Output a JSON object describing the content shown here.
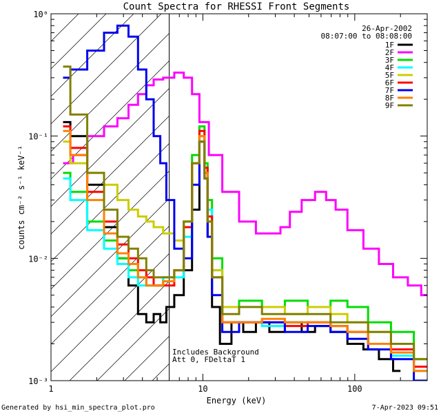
{
  "chart_data": {
    "type": "line",
    "title": "Count Spectra for RHESSI Front Segments",
    "xlabel": "Energy (keV)",
    "ylabel": "counts cm⁻² s⁻¹ keV⁻¹",
    "xscale": "log",
    "yscale": "log",
    "xlim": [
      1,
      300
    ],
    "ylim": [
      0.001,
      1
    ],
    "x_ticks": [
      {
        "value": 1,
        "label": "1"
      },
      {
        "value": 10,
        "label": "10"
      },
      {
        "value": 100,
        "label": "100"
      }
    ],
    "y_ticks": [
      {
        "value": 1,
        "label": "10⁰"
      },
      {
        "value": 0.1,
        "label": "10⁻¹"
      },
      {
        "value": 0.01,
        "label": "10⁻²"
      },
      {
        "value": 0.001,
        "label": "10⁻³"
      }
    ],
    "date": "26-Apr-2002",
    "time_range": "08:07:00 to 08:08:00",
    "legend_position": "top-right",
    "background_hatch_xmax": 6,
    "annotation": [
      "Includes Background",
      "Att 0, FDeltaT 1"
    ],
    "series": [
      {
        "name": "1F",
        "color": "#000000",
        "points": [
          [
            1.2,
            0.13
          ],
          [
            1.5,
            0.1
          ],
          [
            2,
            0.04
          ],
          [
            2.5,
            0.018
          ],
          [
            3,
            0.01
          ],
          [
            3.5,
            0.006
          ],
          [
            4,
            0.0035
          ],
          [
            4.5,
            0.003
          ],
          [
            5,
            0.0035
          ],
          [
            5.5,
            0.003
          ],
          [
            6,
            0.004
          ],
          [
            7,
            0.005
          ],
          [
            8,
            0.008
          ],
          [
            9,
            0.025
          ],
          [
            10,
            0.09
          ],
          [
            10.5,
            0.05
          ],
          [
            11,
            0.015
          ],
          [
            12,
            0.004
          ],
          [
            14,
            0.002
          ],
          [
            17,
            0.003
          ],
          [
            20,
            0.0025
          ],
          [
            25,
            0.003
          ],
          [
            30,
            0.0025
          ],
          [
            40,
            0.003
          ],
          [
            50,
            0.0025
          ],
          [
            60,
            0.0028
          ],
          [
            80,
            0.0025
          ],
          [
            100,
            0.002
          ],
          [
            130,
            0.0018
          ],
          [
            160,
            0.0015
          ],
          [
            200,
            0.0012
          ]
        ]
      },
      {
        "name": "2F",
        "color": "#ff00ff",
        "points": [
          [
            1.2,
            0.06
          ],
          [
            1.3,
            0.06
          ],
          [
            1.5,
            0.07
          ],
          [
            2,
            0.1
          ],
          [
            2.5,
            0.12
          ],
          [
            3,
            0.14
          ],
          [
            3.5,
            0.18
          ],
          [
            4,
            0.22
          ],
          [
            4.5,
            0.26
          ],
          [
            5,
            0.29
          ],
          [
            6,
            0.3
          ],
          [
            7,
            0.33
          ],
          [
            8,
            0.3
          ],
          [
            9,
            0.22
          ],
          [
            10,
            0.13
          ],
          [
            12,
            0.07
          ],
          [
            15,
            0.035
          ],
          [
            20,
            0.02
          ],
          [
            25,
            0.016
          ],
          [
            30,
            0.016
          ],
          [
            35,
            0.018
          ],
          [
            40,
            0.024
          ],
          [
            50,
            0.03
          ],
          [
            60,
            0.035
          ],
          [
            70,
            0.03
          ],
          [
            80,
            0.025
          ],
          [
            100,
            0.017
          ],
          [
            130,
            0.012
          ],
          [
            160,
            0.009
          ],
          [
            200,
            0.007
          ],
          [
            250,
            0.006
          ],
          [
            300,
            0.005
          ]
        ]
      },
      {
        "name": "3F",
        "color": "#00dd00",
        "points": [
          [
            1.2,
            0.05
          ],
          [
            1.5,
            0.035
          ],
          [
            2,
            0.02
          ],
          [
            2.5,
            0.014
          ],
          [
            3,
            0.01
          ],
          [
            3.5,
            0.008
          ],
          [
            4,
            0.007
          ],
          [
            4.5,
            0.006
          ],
          [
            5,
            0.006
          ],
          [
            6,
            0.007
          ],
          [
            7,
            0.008
          ],
          [
            8,
            0.02
          ],
          [
            9,
            0.07
          ],
          [
            10,
            0.12
          ],
          [
            10.5,
            0.06
          ],
          [
            11,
            0.03
          ],
          [
            12,
            0.01
          ],
          [
            15,
            0.004
          ],
          [
            20,
            0.0045
          ],
          [
            30,
            0.004
          ],
          [
            40,
            0.0045
          ],
          [
            60,
            0.004
          ],
          [
            80,
            0.0045
          ],
          [
            100,
            0.004
          ],
          [
            150,
            0.003
          ],
          [
            200,
            0.0025
          ],
          [
            300,
            0.0015
          ]
        ]
      },
      {
        "name": "4F",
        "color": "#00ffff",
        "points": [
          [
            1.2,
            0.045
          ],
          [
            1.5,
            0.03
          ],
          [
            2,
            0.017
          ],
          [
            2.5,
            0.012
          ],
          [
            3,
            0.009
          ],
          [
            3.5,
            0.007
          ],
          [
            4,
            0.006
          ],
          [
            4.5,
            0.006
          ],
          [
            5,
            0.006
          ],
          [
            6,
            0.007
          ],
          [
            7,
            0.007
          ],
          [
            8,
            0.015
          ],
          [
            9,
            0.06
          ],
          [
            10,
            0.1
          ],
          [
            10.5,
            0.05
          ],
          [
            11,
            0.025
          ],
          [
            12,
            0.008
          ],
          [
            15,
            0.003
          ],
          [
            20,
            0.003
          ],
          [
            30,
            0.0028
          ],
          [
            40,
            0.003
          ],
          [
            60,
            0.003
          ],
          [
            80,
            0.0028
          ],
          [
            100,
            0.0025
          ],
          [
            150,
            0.002
          ],
          [
            200,
            0.0016
          ],
          [
            300,
            0.0012
          ]
        ]
      },
      {
        "name": "5F",
        "color": "#cccc00",
        "points": [
          [
            1.2,
            0.09
          ],
          [
            1.5,
            0.06
          ],
          [
            2,
            0.05
          ],
          [
            2.5,
            0.04
          ],
          [
            3,
            0.03
          ],
          [
            3.5,
            0.025
          ],
          [
            4,
            0.022
          ],
          [
            4.5,
            0.02
          ],
          [
            5,
            0.018
          ],
          [
            6,
            0.016
          ],
          [
            7,
            0.014
          ],
          [
            8,
            0.02
          ],
          [
            9,
            0.06
          ],
          [
            10,
            0.1
          ],
          [
            10.5,
            0.05
          ],
          [
            11,
            0.02
          ],
          [
            12,
            0.008
          ],
          [
            15,
            0.004
          ],
          [
            20,
            0.004
          ],
          [
            30,
            0.004
          ],
          [
            40,
            0.0035
          ],
          [
            60,
            0.004
          ],
          [
            80,
            0.0035
          ],
          [
            100,
            0.003
          ],
          [
            150,
            0.0025
          ],
          [
            200,
            0.002
          ],
          [
            300,
            0.0015
          ]
        ]
      },
      {
        "name": "6F",
        "color": "#ff0000",
        "points": [
          [
            1.2,
            0.12
          ],
          [
            1.5,
            0.08
          ],
          [
            2,
            0.035
          ],
          [
            2.5,
            0.02
          ],
          [
            3,
            0.013
          ],
          [
            3.5,
            0.01
          ],
          [
            4,
            0.008
          ],
          [
            4.5,
            0.007
          ],
          [
            5,
            0.006
          ],
          [
            6,
            0.006
          ],
          [
            7,
            0.008
          ],
          [
            8,
            0.018
          ],
          [
            9,
            0.06
          ],
          [
            10,
            0.11
          ],
          [
            10.5,
            0.055
          ],
          [
            11,
            0.022
          ],
          [
            12,
            0.007
          ],
          [
            15,
            0.003
          ],
          [
            20,
            0.003
          ],
          [
            30,
            0.003
          ],
          [
            40,
            0.0028
          ],
          [
            60,
            0.003
          ],
          [
            80,
            0.0028
          ],
          [
            100,
            0.0025
          ],
          [
            150,
            0.002
          ],
          [
            200,
            0.0018
          ],
          [
            300,
            0.0013
          ]
        ]
      },
      {
        "name": "7F",
        "color": "#0000ee",
        "points": [
          [
            1.2,
            0.3
          ],
          [
            1.5,
            0.35
          ],
          [
            2,
            0.5
          ],
          [
            2.5,
            0.7
          ],
          [
            3,
            0.8
          ],
          [
            3.5,
            0.65
          ],
          [
            4,
            0.35
          ],
          [
            4.5,
            0.2
          ],
          [
            5,
            0.1
          ],
          [
            5.5,
            0.06
          ],
          [
            6,
            0.03
          ],
          [
            7,
            0.012
          ],
          [
            8,
            0.01
          ],
          [
            9,
            0.04
          ],
          [
            10,
            0.09
          ],
          [
            10.5,
            0.045
          ],
          [
            11,
            0.015
          ],
          [
            12,
            0.005
          ],
          [
            15,
            0.0025
          ],
          [
            20,
            0.003
          ],
          [
            30,
            0.003
          ],
          [
            40,
            0.0025
          ],
          [
            60,
            0.0028
          ],
          [
            80,
            0.0025
          ],
          [
            100,
            0.0022
          ],
          [
            150,
            0.0018
          ],
          [
            200,
            0.0015
          ],
          [
            300,
            0.001
          ]
        ]
      },
      {
        "name": "8F",
        "color": "#ff8000",
        "points": [
          [
            1.2,
            0.11
          ],
          [
            1.5,
            0.07
          ],
          [
            2,
            0.03
          ],
          [
            2.5,
            0.016
          ],
          [
            3,
            0.011
          ],
          [
            3.5,
            0.009
          ],
          [
            4,
            0.007
          ],
          [
            4.5,
            0.006
          ],
          [
            5,
            0.006
          ],
          [
            6,
            0.0065
          ],
          [
            7,
            0.008
          ],
          [
            8,
            0.02
          ],
          [
            9,
            0.06
          ],
          [
            10,
            0.1
          ],
          [
            10.5,
            0.05
          ],
          [
            11,
            0.02
          ],
          [
            12,
            0.007
          ],
          [
            15,
            0.003
          ],
          [
            20,
            0.003
          ],
          [
            30,
            0.0032
          ],
          [
            40,
            0.003
          ],
          [
            60,
            0.003
          ],
          [
            80,
            0.0028
          ],
          [
            100,
            0.0025
          ],
          [
            150,
            0.002
          ],
          [
            200,
            0.0017
          ],
          [
            300,
            0.0012
          ]
        ]
      },
      {
        "name": "9F",
        "color": "#808000",
        "points": [
          [
            1.2,
            0.37
          ],
          [
            1.5,
            0.15
          ],
          [
            2,
            0.05
          ],
          [
            2.5,
            0.025
          ],
          [
            3,
            0.015
          ],
          [
            3.5,
            0.012
          ],
          [
            4,
            0.01
          ],
          [
            4.5,
            0.008
          ],
          [
            5,
            0.007
          ],
          [
            6,
            0.007
          ],
          [
            7,
            0.008
          ],
          [
            8,
            0.02
          ],
          [
            9,
            0.06
          ],
          [
            10,
            0.09
          ],
          [
            10.5,
            0.045
          ],
          [
            11,
            0.02
          ],
          [
            12,
            0.007
          ],
          [
            15,
            0.0035
          ],
          [
            20,
            0.004
          ],
          [
            30,
            0.0035
          ],
          [
            40,
            0.0035
          ],
          [
            60,
            0.0035
          ],
          [
            80,
            0.003
          ],
          [
            100,
            0.003
          ],
          [
            150,
            0.0025
          ],
          [
            200,
            0.002
          ],
          [
            300,
            0.0015
          ]
        ]
      }
    ]
  },
  "footer": {
    "left": "Generated by hsi_min_spectra_plot.pro",
    "right": "7-Apr-2023 09:51"
  }
}
